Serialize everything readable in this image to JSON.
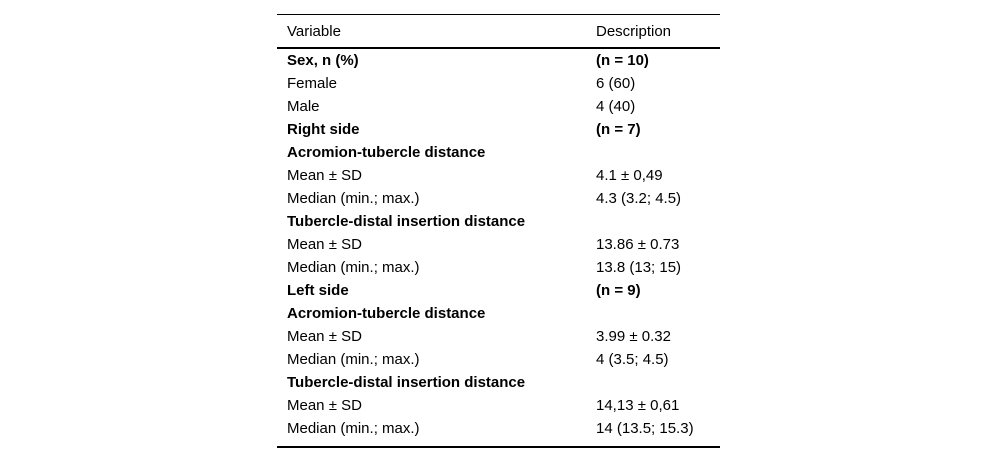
{
  "colors": {
    "background": "#ffffff",
    "text": "#000000",
    "rule": "#000000"
  },
  "table": {
    "columns": {
      "variable": "Variable",
      "description": "Description"
    },
    "rows": [
      {
        "variable": "Sex, n (%)",
        "description": "(n = 10)",
        "bold": true
      },
      {
        "variable": "Female",
        "description": "6 (60)",
        "bold": false
      },
      {
        "variable": "Male",
        "description": "4 (40)",
        "bold": false
      },
      {
        "variable": "Right side",
        "description": "(n = 7)",
        "bold": true
      },
      {
        "variable": "Acromion-tubercle distance",
        "description": "",
        "bold": true
      },
      {
        "variable": "Mean ± SD",
        "description": "4.1 ± 0,49",
        "bold": false
      },
      {
        "variable": "Median (min.; max.)",
        "description": "4.3 (3.2; 4.5)",
        "bold": false
      },
      {
        "variable": "Tubercle-distal insertion distance",
        "description": "",
        "bold": true
      },
      {
        "variable": "Mean ± SD",
        "description": "13.86 ± 0.73",
        "bold": false
      },
      {
        "variable": "Median (min.; max.)",
        "description": "13.8 (13; 15)",
        "bold": false
      },
      {
        "variable": "Left side",
        "description": "(n = 9)",
        "bold": true
      },
      {
        "variable": "Acromion-tubercle distance",
        "description": "",
        "bold": true
      },
      {
        "variable": "Mean ± SD",
        "description": "3.99 ± 0.32",
        "bold": false
      },
      {
        "variable": "Median (min.; max.)",
        "description": "4 (3.5; 4.5)",
        "bold": false
      },
      {
        "variable": "Tubercle-distal insertion distance",
        "description": "",
        "bold": true
      },
      {
        "variable": "Mean ± SD",
        "description": "14,13 ± 0,61",
        "bold": false
      },
      {
        "variable": "Median (min.; max.)",
        "description": "14 (13.5; 15.3)",
        "bold": false
      }
    ]
  }
}
